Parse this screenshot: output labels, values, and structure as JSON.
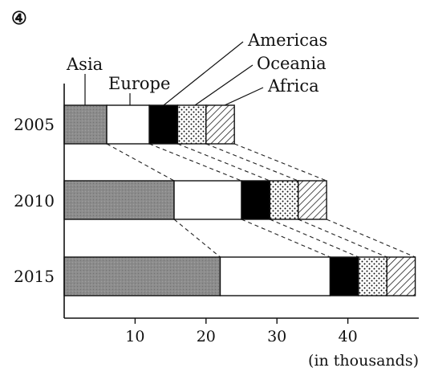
{
  "panel_label": "④",
  "chart_data": {
    "type": "bar",
    "orientation": "horizontal",
    "stacked": true,
    "categories": [
      "2005",
      "2010",
      "2015"
    ],
    "series": [
      {
        "name": "Asia",
        "values": [
          6.0,
          15.5,
          22.0
        ],
        "fill": "#8a8a8a",
        "pattern": "solid-gray"
      },
      {
        "name": "Europe",
        "values": [
          6.0,
          9.5,
          15.5
        ],
        "fill": "#ffffff",
        "pattern": "white"
      },
      {
        "name": "Americas",
        "values": [
          4.0,
          4.0,
          4.0
        ],
        "fill": "#000000",
        "pattern": "solid-black"
      },
      {
        "name": "Oceania",
        "values": [
          4.0,
          4.0,
          4.0
        ],
        "fill": "#ffffff",
        "pattern": "dots"
      },
      {
        "name": "Africa",
        "values": [
          4.0,
          4.0,
          4.0
        ],
        "fill": "#ffffff",
        "pattern": "diagonal-lines"
      }
    ],
    "xlim": [
      0,
      50
    ],
    "x_ticks": [
      10,
      20,
      30,
      40
    ],
    "unit_label": "(in thousands)",
    "connector_lines": "dashed",
    "legend_placement": "top (leader lines to 2005 bar)"
  }
}
